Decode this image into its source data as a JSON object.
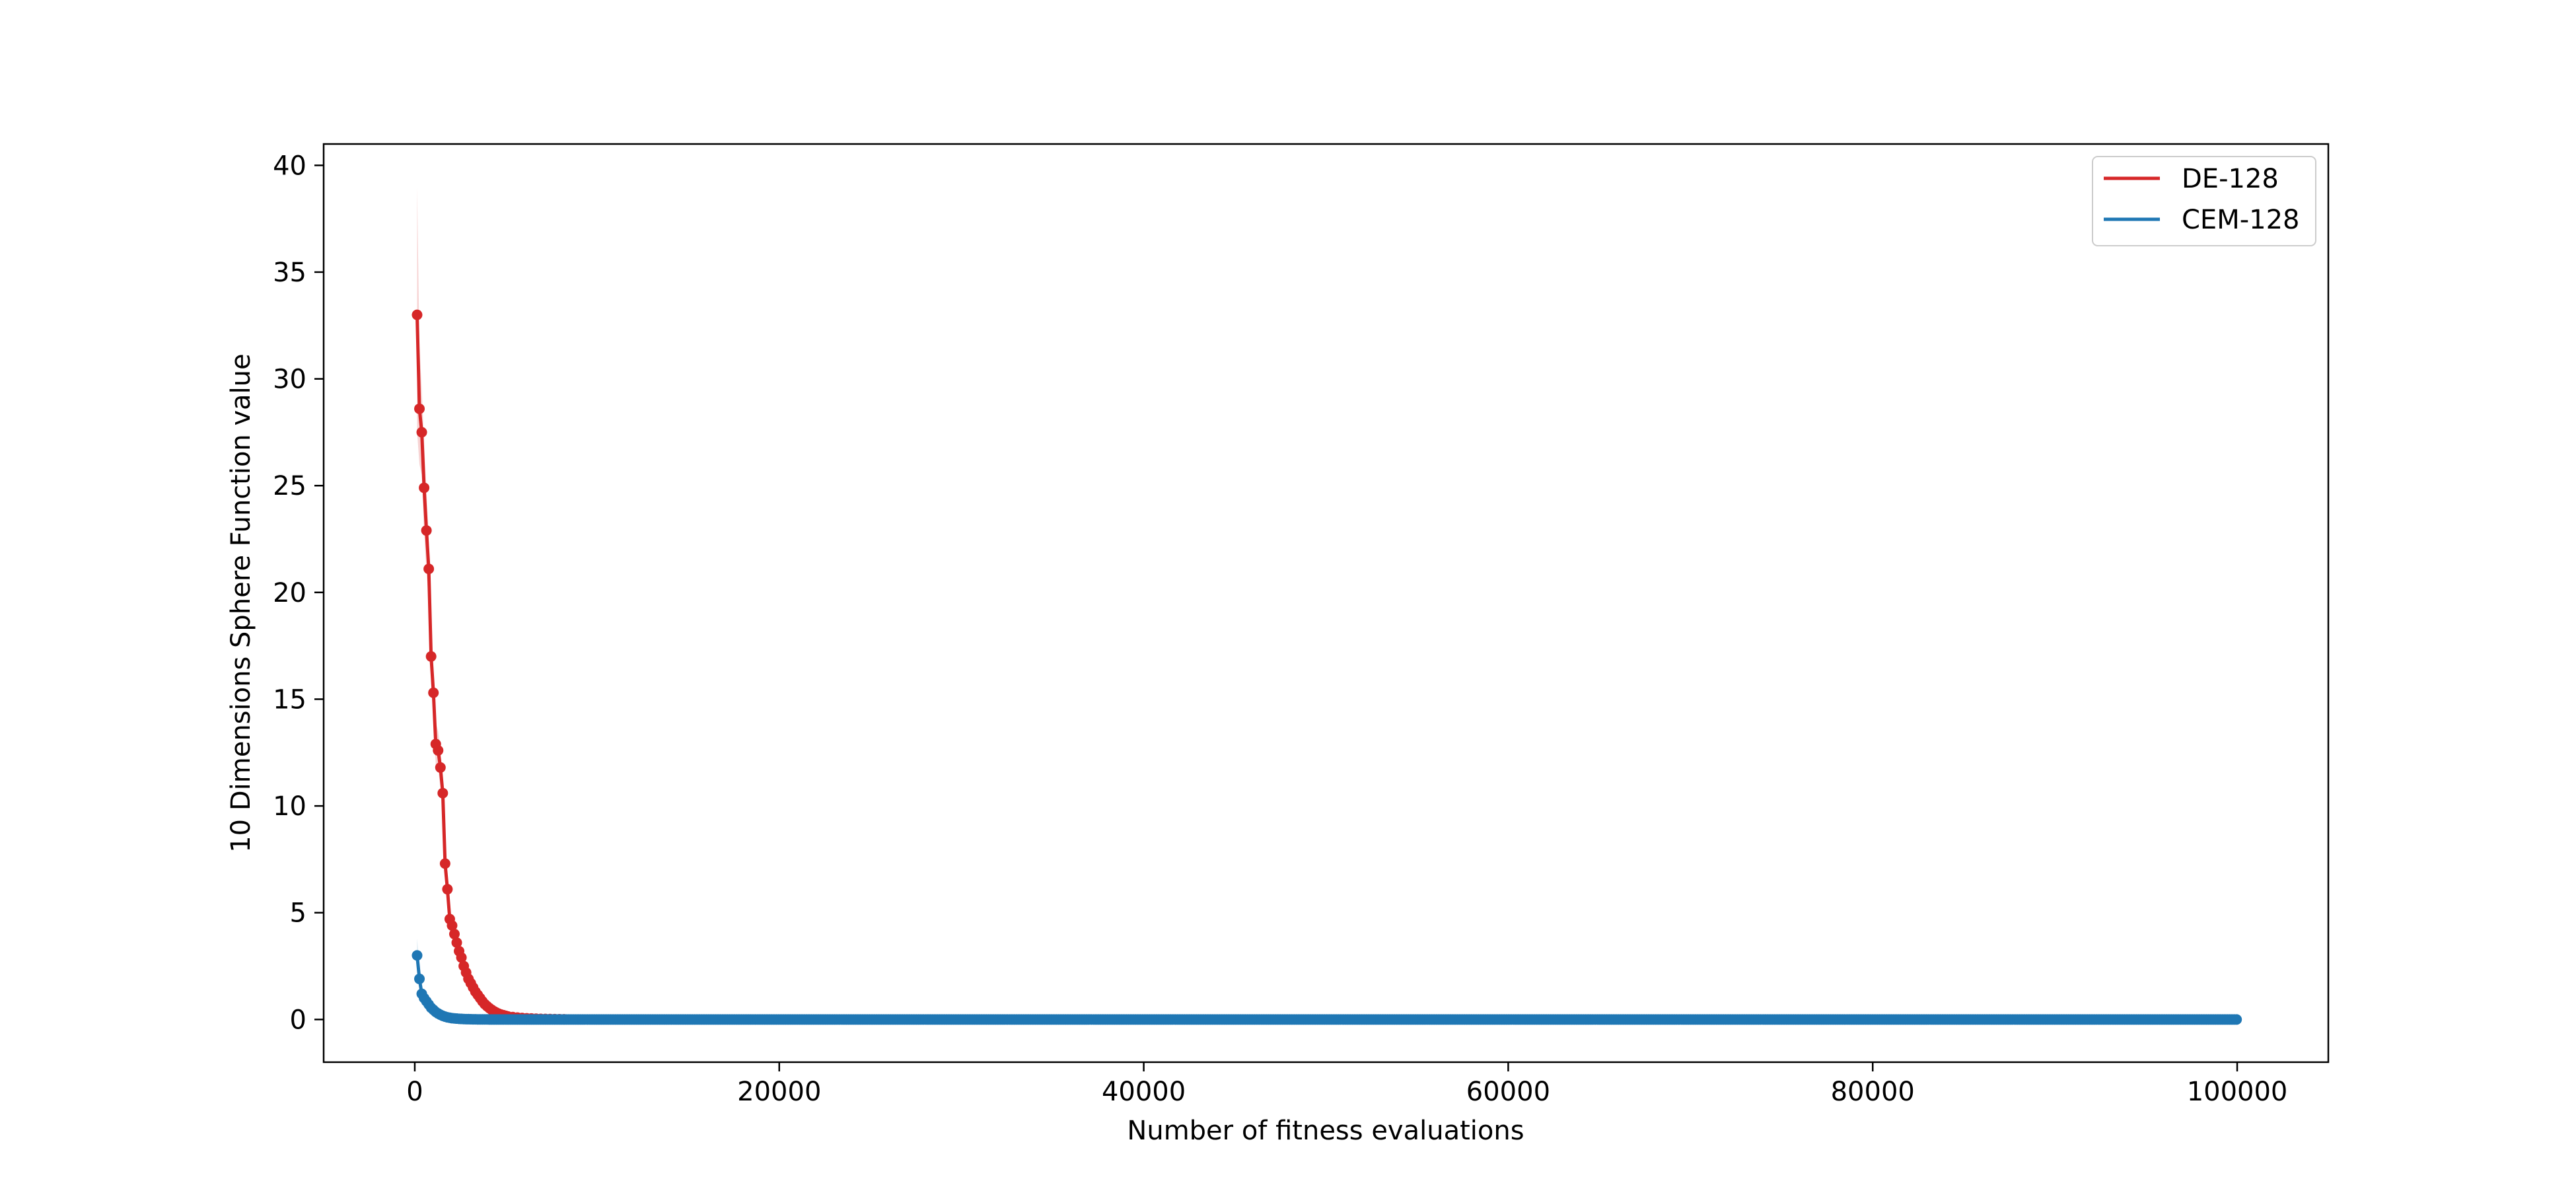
{
  "chart_data": {
    "type": "line",
    "title": "",
    "xlabel": "Number of fitness evaluations",
    "ylabel": "10 Dimensions Sphere Function value",
    "xlim": [
      -5000,
      105000
    ],
    "ylim": [
      -2,
      41
    ],
    "xticks": [
      0,
      20000,
      40000,
      60000,
      80000,
      100000
    ],
    "yticks": [
      0,
      5,
      10,
      15,
      20,
      25,
      30,
      35,
      40
    ],
    "x_tick_labels": [
      "0",
      "20000",
      "40000",
      "60000",
      "80000",
      "100000"
    ],
    "y_tick_labels": [
      "0",
      "5",
      "10",
      "15",
      "20",
      "25",
      "30",
      "35",
      "40"
    ],
    "grid": false,
    "legend_position": "top-right",
    "series": [
      {
        "name": "DE-128",
        "color": "#d62728",
        "x": [
          128,
          256,
          384,
          512,
          640,
          768,
          896,
          1024,
          1152,
          1280,
          1408,
          1536,
          1664,
          1792,
          1920,
          2048,
          2176,
          2304,
          2432,
          2560,
          2688,
          2816,
          2944,
          3072,
          3200,
          3328,
          3456,
          3584,
          3712,
          3840,
          3968,
          4096,
          4224,
          4352,
          4480,
          4608,
          4736,
          4864,
          4992,
          5120,
          5376,
          5632,
          5888,
          6144,
          6400,
          6656,
          6912,
          7168,
          7424,
          7680,
          7936,
          8192
        ],
        "y": [
          33.0,
          28.6,
          27.5,
          24.9,
          22.9,
          21.1,
          17.0,
          15.3,
          12.9,
          12.6,
          11.8,
          10.6,
          7.3,
          6.1,
          4.7,
          4.4,
          4.0,
          3.6,
          3.2,
          2.9,
          2.5,
          2.2,
          1.9,
          1.7,
          1.5,
          1.3,
          1.15,
          1.0,
          0.85,
          0.72,
          0.62,
          0.53,
          0.45,
          0.38,
          0.32,
          0.27,
          0.23,
          0.2,
          0.17,
          0.14,
          0.11,
          0.09,
          0.07,
          0.055,
          0.045,
          0.035,
          0.028,
          0.022,
          0.017,
          0.013,
          0.01,
          0.008
        ],
        "band_upper": [
          39.0,
          31.5,
          29.5,
          27.0,
          24.8,
          22.6,
          18.3,
          16.5,
          13.9,
          13.5,
          12.7,
          11.4,
          7.9,
          6.6,
          5.1,
          4.8,
          4.3,
          3.9,
          3.5,
          3.1,
          2.7,
          2.4,
          2.05,
          1.85,
          1.6,
          1.4,
          1.25,
          1.08,
          0.92,
          0.78,
          0.67,
          0.57,
          0.49,
          0.41,
          0.35,
          0.29,
          0.25,
          0.22,
          0.18,
          0.15,
          0.12,
          0.1,
          0.08,
          0.06,
          0.05,
          0.04,
          0.03,
          0.024,
          0.019,
          0.014,
          0.011,
          0.009
        ],
        "band_lower": [
          27.5,
          26.0,
          25.5,
          22.8,
          21.0,
          19.6,
          15.7,
          14.1,
          11.9,
          11.7,
          10.9,
          9.8,
          6.7,
          5.6,
          4.3,
          4.0,
          3.7,
          3.3,
          2.9,
          2.7,
          2.3,
          2.0,
          1.75,
          1.55,
          1.4,
          1.2,
          1.05,
          0.92,
          0.78,
          0.66,
          0.57,
          0.49,
          0.41,
          0.35,
          0.29,
          0.25,
          0.21,
          0.18,
          0.16,
          0.13,
          0.1,
          0.08,
          0.06,
          0.05,
          0.04,
          0.03,
          0.026,
          0.02,
          0.015,
          0.012,
          0.009,
          0.007
        ]
      },
      {
        "name": "CEM-128",
        "color": "#1f77b4",
        "x": [
          128,
          256,
          384,
          512,
          640,
          768,
          896,
          1024,
          1152,
          1280,
          1408,
          1536,
          1664,
          1792,
          1920,
          2048,
          2176,
          2304,
          2432,
          2560,
          2688,
          2816,
          2944,
          3072,
          3200,
          3328,
          3456,
          3584,
          3712,
          3840,
          3968,
          4096
        ],
        "y": [
          3.0,
          1.9,
          1.2,
          1.0,
          0.85,
          0.7,
          0.55,
          0.45,
          0.35,
          0.28,
          0.22,
          0.17,
          0.13,
          0.1,
          0.08,
          0.06,
          0.05,
          0.04,
          0.03,
          0.025,
          0.02,
          0.016,
          0.013,
          0.01,
          0.008,
          0.006,
          0.005,
          0.004,
          0.003,
          0.002,
          0.002,
          0.001
        ],
        "band_upper": [
          3.8,
          2.3,
          1.45,
          1.15,
          0.98,
          0.8,
          0.63,
          0.52,
          0.4,
          0.32,
          0.25,
          0.19,
          0.15,
          0.11,
          0.09,
          0.07,
          0.055,
          0.045,
          0.035,
          0.028,
          0.022,
          0.018,
          0.014,
          0.011,
          0.009,
          0.007,
          0.006,
          0.005,
          0.004,
          0.003,
          0.002,
          0.0015
        ],
        "band_lower": [
          2.3,
          1.55,
          1.0,
          0.86,
          0.73,
          0.6,
          0.47,
          0.38,
          0.3,
          0.24,
          0.19,
          0.15,
          0.11,
          0.09,
          0.07,
          0.05,
          0.045,
          0.035,
          0.025,
          0.022,
          0.018,
          0.014,
          0.012,
          0.009,
          0.007,
          0.005,
          0.004,
          0.003,
          0.002,
          0.0015,
          0.0015,
          0.0005
        ],
        "flat_tail": {
          "x_start": 4224,
          "x_end": 100000,
          "step": 128,
          "y": 0.0
        }
      }
    ]
  }
}
